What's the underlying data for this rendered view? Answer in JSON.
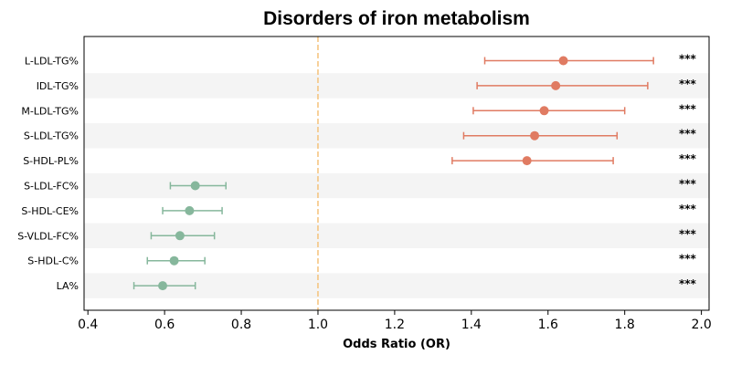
{
  "chart_data": {
    "type": "scatter",
    "title": "Disorders of iron metabolism",
    "xlabel": "Odds Ratio (OR)",
    "ylabel": "",
    "xlim": [
      0.39,
      2.02
    ],
    "xticks": [
      "0.4",
      "0.6",
      "0.8",
      "1.0",
      "1.2",
      "1.4",
      "1.6",
      "1.8",
      "2.0"
    ],
    "reference_line": 1.0,
    "colors": {
      "risk": "#e07b62",
      "protective": "#86b79c",
      "reference": "#f5c27a",
      "band": "#f4f4f4"
    },
    "rows": [
      {
        "label": "L-LDL-TG%",
        "or": 1.64,
        "lower": 1.435,
        "upper": 1.875,
        "sig": "***"
      },
      {
        "label": "IDL-TG%",
        "or": 1.62,
        "lower": 1.415,
        "upper": 1.86,
        "sig": "***"
      },
      {
        "label": "M-LDL-TG%",
        "or": 1.59,
        "lower": 1.405,
        "upper": 1.8,
        "sig": "***"
      },
      {
        "label": "S-LDL-TG%",
        "or": 1.565,
        "lower": 1.38,
        "upper": 1.78,
        "sig": "***"
      },
      {
        "label": "S-HDL-PL%",
        "or": 1.545,
        "lower": 1.35,
        "upper": 1.77,
        "sig": "***"
      },
      {
        "label": "S-LDL-FC%",
        "or": 0.68,
        "lower": 0.615,
        "upper": 0.76,
        "sig": "***"
      },
      {
        "label": "S-HDL-CE%",
        "or": 0.665,
        "lower": 0.595,
        "upper": 0.75,
        "sig": "***"
      },
      {
        "label": "S-VLDL-FC%",
        "or": 0.64,
        "lower": 0.565,
        "upper": 0.73,
        "sig": "***"
      },
      {
        "label": "S-HDL-C%",
        "or": 0.625,
        "lower": 0.555,
        "upper": 0.705,
        "sig": "***"
      },
      {
        "label": "LA%",
        "or": 0.595,
        "lower": 0.52,
        "upper": 0.68,
        "sig": "***"
      }
    ]
  }
}
